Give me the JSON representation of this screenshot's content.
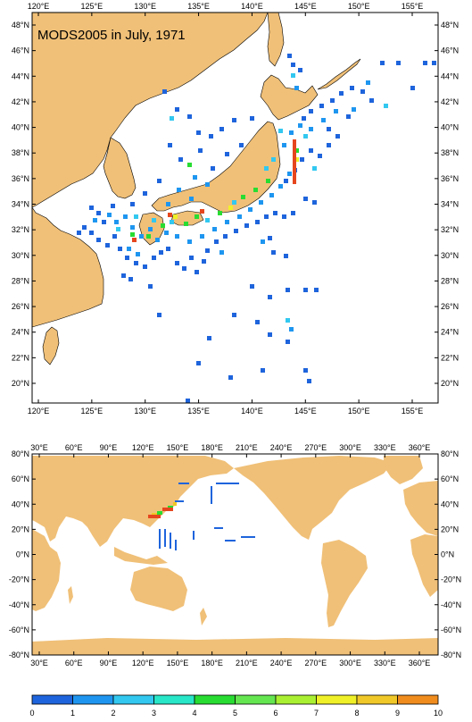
{
  "title": "MODS2005 in July, 1971",
  "colors": {
    "land": "#f0c078",
    "ocean": "#ffffff",
    "frame": "#000000"
  },
  "top_map": {
    "x_ticks": [
      "120°E",
      "125°E",
      "130°E",
      "135°E",
      "140°E",
      "145°E",
      "150°E",
      "155°E"
    ],
    "y_ticks": [
      "48°N",
      "46°N",
      "44°N",
      "42°N",
      "40°N",
      "38°N",
      "36°N",
      "34°N",
      "32°N",
      "30°N",
      "28°N",
      "26°N",
      "24°N",
      "22°N",
      "20°N"
    ],
    "lon_range": [
      119.5,
      157.5
    ],
    "lat_range": [
      18.5,
      49.5
    ]
  },
  "bottom_map": {
    "x_ticks": [
      "30°E",
      "60°E",
      "90°E",
      "120°E",
      "150°E",
      "180°E",
      "210°E",
      "240°E",
      "270°E",
      "300°E",
      "330°E",
      "360°E"
    ],
    "y_ticks": [
      "80°N",
      "60°N",
      "40°N",
      "20°N",
      "0°N",
      "-20°N",
      "-40°N",
      "-60°N",
      "-80°N"
    ],
    "lon_range": [
      20,
      370
    ],
    "lat_range": [
      -80,
      80
    ]
  },
  "colorbar": {
    "labels": [
      "0",
      "1",
      "2",
      "3",
      "4",
      "5",
      "6",
      "7",
      "8",
      "9",
      "10"
    ],
    "colors": [
      "#1e64dc",
      "#1e96f0",
      "#32c8f0",
      "#28e6c8",
      "#28dc32",
      "#64e650",
      "#aaf032",
      "#f0f028",
      "#f0c828",
      "#f08c1e",
      "#e6461e"
    ]
  }
}
